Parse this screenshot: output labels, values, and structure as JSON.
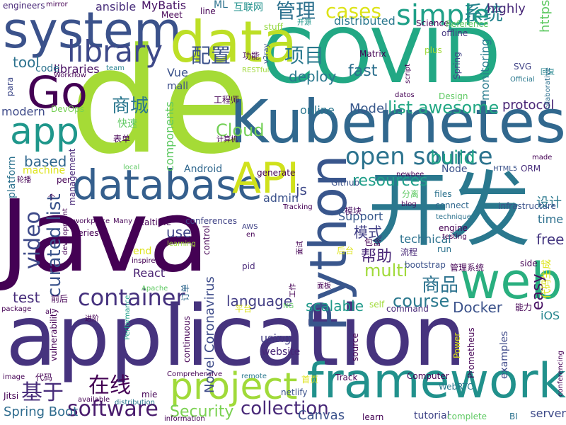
{
  "words": [
    {
      "text": "Java",
      "color": "#440154"
    },
    {
      "text": "application",
      "color": "#46337e"
    },
    {
      "text": "de",
      "color": "#a5db36"
    },
    {
      "text": "COVID",
      "color": "#22a884"
    },
    {
      "text": "开发",
      "color": "#2a788e"
    },
    {
      "text": "Kubernetes",
      "color": "#31688e"
    },
    {
      "text": "system",
      "color": "#3b528b"
    },
    {
      "text": "framework",
      "color": "#21918c"
    },
    {
      "text": "data",
      "color": "#bddf26"
    },
    {
      "text": "database",
      "color": "#355f8d"
    },
    {
      "text": "Python",
      "color": "#39568c"
    },
    {
      "text": "web",
      "color": "#29af7f"
    },
    {
      "text": "project",
      "color": "#a0da39"
    },
    {
      "text": "Go",
      "color": "#440154"
    },
    {
      "text": "app",
      "color": "#1f978b"
    },
    {
      "text": "API",
      "color": "#d0e11c"
    },
    {
      "text": "library",
      "color": "#3e4989"
    },
    {
      "text": "simple",
      "color": "#1fa088"
    },
    {
      "text": "open source",
      "color": "#2c738e"
    },
    {
      "text": "container",
      "color": "#46327e"
    },
    {
      "text": "video",
      "color": "#3e4a89"
    },
    {
      "text": "software",
      "color": "#481a6c"
    },
    {
      "text": "collection",
      "color": "#482878"
    },
    {
      "text": "基于",
      "color": "#472c7a"
    },
    {
      "text": "在线",
      "color": "#440154"
    },
    {
      "text": "cases",
      "color": "#dde318"
    },
    {
      "text": "管理",
      "color": "#2d718e"
    },
    {
      "text": "系统",
      "color": "#25848e"
    },
    {
      "text": "配置",
      "color": "#3b518b"
    },
    {
      "text": "项目",
      "color": "#2a788e"
    },
    {
      "text": "商城",
      "color": "#2a768e"
    },
    {
      "text": "Cloud",
      "color": "#73d056"
    },
    {
      "text": "list awesome",
      "color": "#22a884"
    },
    {
      "text": "curated list",
      "color": "#3a538b"
    },
    {
      "text": "build",
      "color": "#20a386"
    },
    {
      "text": "resources",
      "color": "#1f9e89"
    },
    {
      "text": "fast",
      "color": "#2d708e"
    },
    {
      "text": "Security",
      "color": "#7ad151"
    },
    {
      "text": "multi",
      "color": "#a0da39"
    },
    {
      "text": "商品",
      "color": "#2c728e"
    },
    {
      "text": "帮助",
      "color": "#482677"
    },
    {
      "text": "language",
      "color": "#433e85"
    },
    {
      "text": "course",
      "color": "#2a788e"
    },
    {
      "text": "scalable",
      "color": "#1f9a8a"
    },
    {
      "text": "Docker",
      "color": "#3b528b"
    },
    {
      "text": "test",
      "color": "#472d7b"
    },
    {
      "text": "tool",
      "color": "#2c728e"
    },
    {
      "text": "easy",
      "color": "#471063"
    },
    {
      "text": "js",
      "color": "#3e4989"
    },
    {
      "text": "use",
      "color": "#404588"
    },
    {
      "text": "based",
      "color": "#31688e"
    },
    {
      "text": "deploy",
      "color": "#2a788e"
    },
    {
      "text": "模式",
      "color": "#424086"
    },
    {
      "text": "设计",
      "color": "#2a788e"
    },
    {
      "text": "Novel Coronavirus",
      "color": "#3e4c8a"
    },
    {
      "text": "Spring Boot",
      "color": "#2f6c8e"
    },
    {
      "text": "free",
      "color": "#453781"
    },
    {
      "text": "iOS",
      "color": "#25858e"
    },
    {
      "text": "Canvas",
      "color": "#3b528b"
    },
    {
      "text": "https",
      "color": "#5ec962"
    },
    {
      "text": "highly",
      "color": "#482878"
    },
    {
      "text": "protocol",
      "color": "#482475"
    },
    {
      "text": "Model",
      "color": "#38588c"
    },
    {
      "text": "online",
      "color": "#2a768e"
    },
    {
      "text": "modern",
      "color": "#3e4a89"
    },
    {
      "text": "libraries",
      "color": "#470e61"
    },
    {
      "text": "code",
      "color": "#2c738e"
    },
    {
      "text": "monitoring",
      "color": "#287c8e"
    },
    {
      "text": "time",
      "color": "#2d708e"
    },
    {
      "text": "components",
      "color": "#5ec962"
    },
    {
      "text": "Vue",
      "color": "#3b528b"
    },
    {
      "text": "mall",
      "color": "#3d4e8a"
    },
    {
      "text": "tutorial",
      "color": "#404588"
    },
    {
      "text": "ansible",
      "color": "#472d7b"
    },
    {
      "text": "MyBatis",
      "color": "#471365"
    },
    {
      "text": "distributed",
      "color": "#2a788e"
    },
    {
      "text": "technical",
      "color": "#2c718e"
    },
    {
      "text": "React",
      "color": "#482071"
    },
    {
      "text": "Support",
      "color": "#38598c"
    },
    {
      "text": "admin",
      "color": "#3b528b"
    },
    {
      "text": "conferences",
      "color": "#414487"
    },
    {
      "text": "end",
      "color": "#dde318"
    },
    {
      "text": "server",
      "color": "#3e4a89"
    },
    {
      "text": "Android",
      "color": "#31688e"
    },
    {
      "text": "Node",
      "color": "#3b528b"
    },
    {
      "text": "generate",
      "color": "#440154"
    },
    {
      "text": "using",
      "color": "#433e85"
    },
    {
      "text": "website",
      "color": "#482677"
    },
    {
      "text": "examples",
      "color": "#3e4989"
    },
    {
      "text": "Meet",
      "color": "#440154"
    },
    {
      "text": "line",
      "color": "#440154"
    },
    {
      "text": "ML",
      "color": "#2c728e"
    },
    {
      "text": "互联网",
      "color": "#21918c"
    },
    {
      "text": "stuff",
      "color": "#95d840"
    },
    {
      "text": "开源",
      "color": "#1f968b"
    },
    {
      "text": "Science",
      "color": "#440154"
    },
    {
      "text": "Reference",
      "color": "#5ec962"
    },
    {
      "text": "offline",
      "color": "#453781"
    },
    {
      "text": "Matrix",
      "color": "#440154"
    },
    {
      "text": "plus",
      "color": "#a0da39"
    },
    {
      "text": "Spring",
      "color": "#414487"
    },
    {
      "text": "SVG",
      "color": "#414487"
    },
    {
      "text": "Official",
      "color": "#2a788e"
    },
    {
      "text": "回复",
      "color": "#25858e"
    },
    {
      "text": "collaborative",
      "color": "#2d708e"
    },
    {
      "text": "engineers",
      "color": "#482878"
    },
    {
      "text": "mirror",
      "color": "#440154"
    },
    {
      "text": "para",
      "color": "#3e4989"
    },
    {
      "text": "Workflow",
      "color": "#440154"
    },
    {
      "text": "team",
      "color": "#26828e"
    },
    {
      "text": "DevOps",
      "color": "#75d054"
    },
    {
      "text": "RESTful",
      "color": "#a0da39"
    },
    {
      "text": "功能",
      "color": "#440154"
    },
    {
      "text": "v2ray",
      "color": "#3b528b"
    },
    {
      "text": "工程师",
      "color": "#440154"
    },
    {
      "text": "快速",
      "color": "#5ec962"
    },
    {
      "text": "表单",
      "color": "#440154"
    },
    {
      "text": "计算机",
      "color": "#440154"
    },
    {
      "text": "platform",
      "color": "#2c728e"
    },
    {
      "text": "machine",
      "color": "#dde318"
    },
    {
      "text": "management",
      "color": "#482878"
    },
    {
      "text": "轮播",
      "color": "#440154"
    },
    {
      "text": "per",
      "color": "#440154"
    },
    {
      "text": "local",
      "color": "#5ec962"
    },
    {
      "text": "Github",
      "color": "#3b528b"
    },
    {
      "text": "newbee",
      "color": "#440154"
    },
    {
      "text": "HTML5",
      "color": "#3b528b"
    },
    {
      "text": "ORM",
      "color": "#472d7b"
    },
    {
      "text": "made",
      "color": "#440154"
    },
    {
      "text": "files",
      "color": "#2c728e"
    },
    {
      "text": "分离",
      "color": "#5ec962"
    },
    {
      "text": "connect",
      "color": "#31688e"
    },
    {
      "text": "infrastructure",
      "color": "#3b528b"
    },
    {
      "text": "blog",
      "color": "#440154"
    },
    {
      "text": "Tracking",
      "color": "#440154"
    },
    {
      "text": "模块",
      "color": "#471063"
    },
    {
      "text": "workplace",
      "color": "#440154"
    },
    {
      "text": "Many",
      "color": "#440154"
    },
    {
      "text": "realtime",
      "color": "#440154"
    },
    {
      "text": "development",
      "color": "#440154"
    },
    {
      "text": "learning",
      "color": "#a0da39"
    },
    {
      "text": "AWS",
      "color": "#414487"
    },
    {
      "text": "en",
      "color": "#440154"
    },
    {
      "text": "technique",
      "color": "#2c728e"
    },
    {
      "text": "engine",
      "color": "#440154"
    },
    {
      "text": "testing",
      "color": "#440154"
    },
    {
      "text": "包含",
      "color": "#440154"
    },
    {
      "text": "流程",
      "color": "#482878"
    },
    {
      "text": "run",
      "color": "#2c728e"
    },
    {
      "text": "series",
      "color": "#440154"
    },
    {
      "text": "control",
      "color": "#440154"
    },
    {
      "text": "pid",
      "color": "#482878"
    },
    {
      "text": "inspired",
      "color": "#440154"
    },
    {
      "text": "面试",
      "color": "#440154"
    },
    {
      "text": "工作",
      "color": "#440154"
    },
    {
      "text": "后台",
      "color": "#dde318"
    },
    {
      "text": "bootstrap",
      "color": "#3b528b"
    },
    {
      "text": "管理系统",
      "color": "#440154"
    },
    {
      "text": "side",
      "color": "#440154"
    },
    {
      "text": "代码生成",
      "color": "#dde318"
    },
    {
      "text": "前后",
      "color": "#440154"
    },
    {
      "text": "Apache",
      "color": "#5ec962"
    },
    {
      "text": "订单",
      "color": "#31688e"
    },
    {
      "text": "面板",
      "color": "#440154"
    },
    {
      "text": "平台",
      "color": "#dde318"
    },
    {
      "text": "NG",
      "color": "#5ec962"
    },
    {
      "text": "self",
      "color": "#a0da39"
    },
    {
      "text": "command",
      "color": "#482878"
    },
    {
      "text": "能力",
      "color": "#440154"
    },
    {
      "text": "package",
      "color": "#440154"
    },
    {
      "text": "al",
      "color": "#440154"
    },
    {
      "text": "Performance",
      "color": "#1f9e89"
    },
    {
      "text": "进阶",
      "color": "#440154"
    },
    {
      "text": "vulnerability",
      "color": "#440154"
    },
    {
      "text": "continuous",
      "color": "#440154"
    },
    {
      "text": "Power",
      "color": "#dde318"
    },
    {
      "text": "Prometheus",
      "color": "#440154"
    },
    {
      "text": "source",
      "color": "#440154"
    },
    {
      "text": "conferencing",
      "color": "#440154"
    },
    {
      "text": "image",
      "color": "#440154"
    },
    {
      "text": "代码",
      "color": "#440154"
    },
    {
      "text": "Comprehensive",
      "color": "#440154"
    },
    {
      "text": "remote",
      "color": "#2a788e"
    },
    {
      "text": "首页",
      "color": "#dde318"
    },
    {
      "text": "Track",
      "color": "#440154"
    },
    {
      "text": "Computer",
      "color": "#440154"
    },
    {
      "text": "WebRTC",
      "color": "#2a788e"
    },
    {
      "text": "Jitsi",
      "color": "#440154"
    },
    {
      "text": "mie",
      "color": "#440154"
    },
    {
      "text": "available",
      "color": "#440154"
    },
    {
      "text": "distribution",
      "color": "#2a788e"
    },
    {
      "text": "information",
      "color": "#440154"
    },
    {
      "text": "netlify",
      "color": "#3b528b"
    },
    {
      "text": "learn",
      "color": "#440154"
    },
    {
      "text": "complete",
      "color": "#5ec962"
    },
    {
      "text": "BI",
      "color": "#2c728e"
    },
    {
      "text": "Design",
      "color": "#5ec962"
    },
    {
      "text": "script",
      "color": "#440154"
    },
    {
      "text": "datos",
      "color": "#440154"
    },
    {
      "text": "个",
      "color": "#440154"
    }
  ]
}
